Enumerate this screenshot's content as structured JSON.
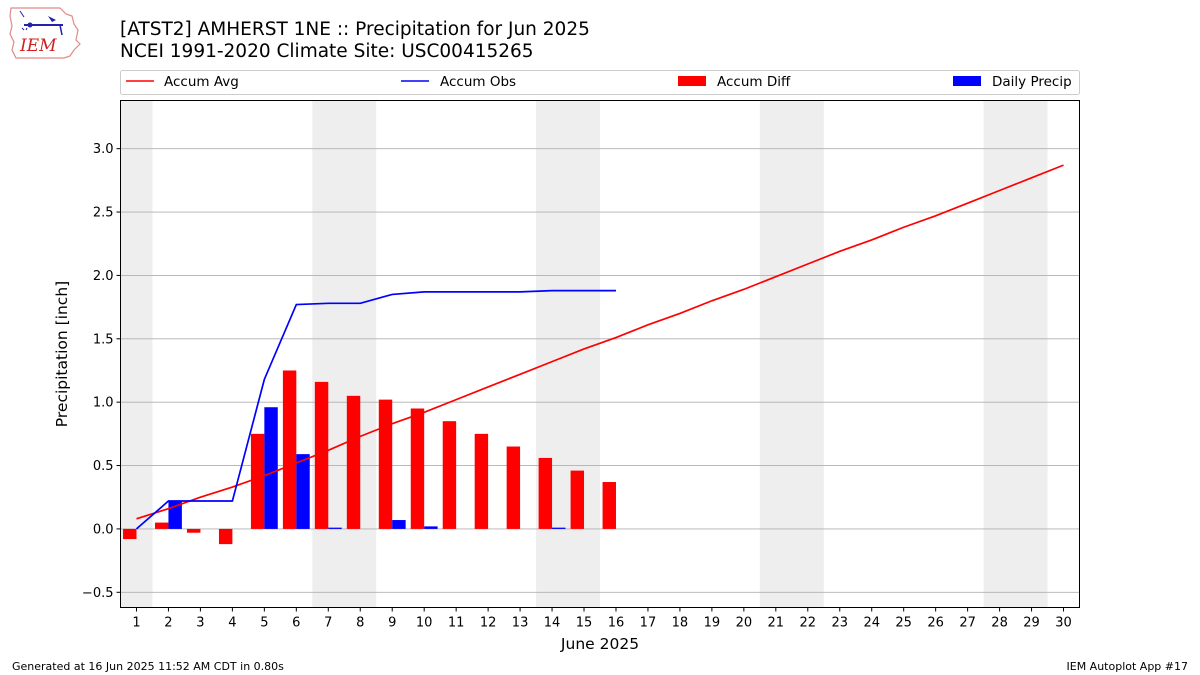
{
  "chart_data": {
    "type": "bar",
    "title": "[ATST2] AMHERST 1NE :: Precipitation for Jun 2025",
    "subtitle": "NCEI 1991-2020 Climate Site: USC00415265",
    "xlabel": "June 2025",
    "ylabel": "Precipitation [inch]",
    "ylim": [
      -0.62,
      3.38
    ],
    "xlim": [
      0.5,
      30.5
    ],
    "yticks": [
      "−0.5",
      "0.0",
      "0.5",
      "1.0",
      "1.5",
      "2.0",
      "2.5",
      "3.0"
    ],
    "ytick_values": [
      -0.5,
      0.0,
      0.5,
      1.0,
      1.5,
      2.0,
      2.5,
      3.0
    ],
    "days": [
      1,
      2,
      3,
      4,
      5,
      6,
      7,
      8,
      9,
      10,
      11,
      12,
      13,
      14,
      15,
      16,
      17,
      18,
      19,
      20,
      21,
      22,
      23,
      24,
      25,
      26,
      27,
      28,
      29,
      30
    ],
    "day_labels": [
      "1",
      "2",
      "3",
      "4",
      "5",
      "6",
      "7",
      "8",
      "9",
      "10",
      "11",
      "12",
      "13",
      "14",
      "15",
      "16",
      "17",
      "18",
      "19",
      "20",
      "21",
      "22",
      "23",
      "24",
      "25",
      "26",
      "27",
      "28",
      "29",
      "30"
    ],
    "weekend_day_ranges": [
      [
        0.5,
        1.5
      ],
      [
        6.5,
        8.5
      ],
      [
        13.5,
        15.5
      ],
      [
        20.5,
        22.5
      ],
      [
        27.5,
        29.5
      ]
    ],
    "grid": "horizontal",
    "legend_placement": "top",
    "series": [
      {
        "name": "Accum Avg",
        "kind": "line",
        "color": "#ff0000",
        "x": [
          1,
          2,
          3,
          4,
          5,
          6,
          7,
          8,
          9,
          10,
          11,
          12,
          13,
          14,
          15,
          16,
          17,
          18,
          19,
          20,
          21,
          22,
          23,
          24,
          25,
          26,
          27,
          28,
          29,
          30
        ],
        "values": [
          0.08,
          0.16,
          0.25,
          0.33,
          0.42,
          0.52,
          0.62,
          0.73,
          0.83,
          0.92,
          1.02,
          1.12,
          1.22,
          1.32,
          1.42,
          1.51,
          1.61,
          1.7,
          1.8,
          1.89,
          1.99,
          2.09,
          2.19,
          2.28,
          2.38,
          2.47,
          2.57,
          2.67,
          2.77,
          2.87
        ]
      },
      {
        "name": "Accum Obs",
        "kind": "line",
        "color": "#0000ff",
        "x": [
          1,
          2,
          3,
          4,
          5,
          6,
          7,
          8,
          9,
          10,
          11,
          12,
          13,
          14,
          15,
          16
        ],
        "values": [
          0.0,
          0.22,
          0.22,
          0.22,
          1.18,
          1.77,
          1.78,
          1.78,
          1.85,
          1.87,
          1.87,
          1.87,
          1.87,
          1.88,
          1.88,
          1.88
        ]
      },
      {
        "name": "Accum Diff",
        "kind": "bar",
        "color": "#ff0000",
        "x": [
          1,
          2,
          3,
          4,
          5,
          6,
          7,
          8,
          9,
          10,
          11,
          12,
          13,
          14,
          15,
          16
        ],
        "values": [
          -0.08,
          0.05,
          -0.03,
          -0.12,
          0.75,
          1.25,
          1.16,
          1.05,
          1.02,
          0.95,
          0.85,
          0.75,
          0.65,
          0.56,
          0.46,
          0.37
        ]
      },
      {
        "name": "Daily Precip",
        "kind": "bar",
        "color": "#0000ff",
        "x": [
          1,
          2,
          3,
          4,
          5,
          6,
          7,
          8,
          9,
          10,
          11,
          12,
          13,
          14,
          15,
          16
        ],
        "values": [
          0.0,
          0.22,
          0.0,
          0.0,
          0.96,
          0.59,
          0.01,
          0.0,
          0.07,
          0.02,
          0.0,
          0.0,
          0.0,
          0.01,
          0.0,
          0.0
        ]
      }
    ]
  },
  "footer": {
    "generated": "Generated at 16 Jun 2025 11:52 AM CDT in 0.80s",
    "app": "IEM Autoplot App #17"
  },
  "logo": {
    "text": "IEM"
  }
}
